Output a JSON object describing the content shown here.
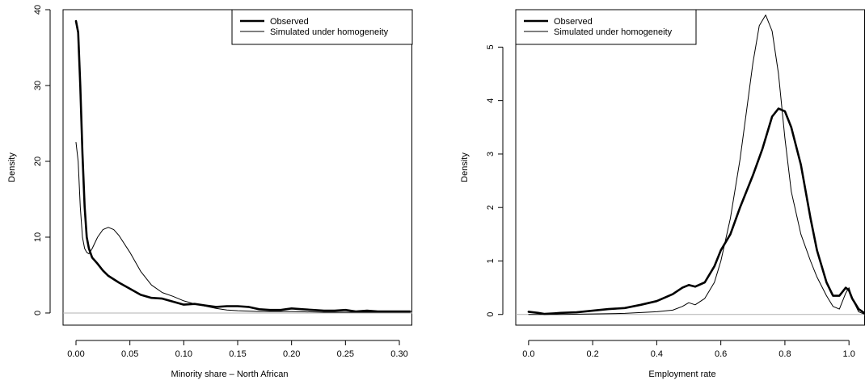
{
  "chart_data": [
    {
      "type": "line",
      "xlabel": "Minority share – North African",
      "ylabel": "Density",
      "xlim": [
        -0.012,
        0.312
      ],
      "ylim": [
        -1.6,
        40
      ],
      "xticks": [
        0.0,
        0.05,
        0.1,
        0.15,
        0.2,
        0.25,
        0.3
      ],
      "xtick_labels": [
        "0.00",
        "0.05",
        "0.10",
        "0.15",
        "0.20",
        "0.25",
        "0.30"
      ],
      "yticks": [
        0,
        10,
        20,
        30,
        40
      ],
      "ytick_labels": [
        "0",
        "10",
        "20",
        "30",
        "40"
      ],
      "legend_position": "top-right",
      "series": [
        {
          "name": "Observed",
          "style": "thick",
          "x": [
            0.0,
            0.002,
            0.004,
            0.006,
            0.008,
            0.01,
            0.012,
            0.015,
            0.02,
            0.025,
            0.03,
            0.04,
            0.05,
            0.06,
            0.07,
            0.08,
            0.09,
            0.1,
            0.11,
            0.12,
            0.13,
            0.14,
            0.15,
            0.16,
            0.17,
            0.18,
            0.19,
            0.2,
            0.21,
            0.22,
            0.23,
            0.24,
            0.25,
            0.26,
            0.27,
            0.28,
            0.29,
            0.3,
            0.31
          ],
          "y": [
            38.5,
            37.0,
            30.0,
            21.0,
            14.0,
            10.0,
            8.5,
            7.3,
            6.5,
            5.6,
            4.9,
            4.0,
            3.2,
            2.4,
            2.0,
            1.9,
            1.5,
            1.1,
            1.2,
            1.0,
            0.8,
            0.9,
            0.9,
            0.8,
            0.5,
            0.4,
            0.4,
            0.6,
            0.5,
            0.4,
            0.3,
            0.3,
            0.4,
            0.2,
            0.3,
            0.2,
            0.2,
            0.2,
            0.2
          ]
        },
        {
          "name": "Simulated under homogeneity",
          "style": "thin",
          "x": [
            0.0,
            0.002,
            0.004,
            0.006,
            0.008,
            0.01,
            0.012,
            0.015,
            0.02,
            0.025,
            0.03,
            0.035,
            0.04,
            0.05,
            0.06,
            0.07,
            0.08,
            0.09,
            0.1,
            0.11,
            0.12,
            0.13,
            0.14,
            0.15,
            0.17,
            0.2,
            0.23,
            0.26,
            0.29,
            0.31
          ],
          "y": [
            22.5,
            20.0,
            14.0,
            10.0,
            8.5,
            8.0,
            7.8,
            8.5,
            10.0,
            11.0,
            11.3,
            11.0,
            10.2,
            8.0,
            5.5,
            3.7,
            2.7,
            2.2,
            1.6,
            1.2,
            0.9,
            0.6,
            0.4,
            0.3,
            0.2,
            0.2,
            0.1,
            0.1,
            0.1,
            0.1
          ]
        }
      ]
    },
    {
      "type": "line",
      "xlabel": "Employment rate",
      "ylabel": "Density",
      "xlim": [
        -0.04,
        1.05
      ],
      "ylim": [
        -0.2,
        5.7
      ],
      "xticks": [
        0.0,
        0.2,
        0.4,
        0.6,
        0.8,
        1.0
      ],
      "xtick_labels": [
        "0.0",
        "0.2",
        "0.4",
        "0.6",
        "0.8",
        "1.0"
      ],
      "yticks": [
        0,
        1,
        2,
        3,
        4,
        5
      ],
      "ytick_labels": [
        "0",
        "1",
        "2",
        "3",
        "4",
        "5"
      ],
      "legend_position": "top-left",
      "series": [
        {
          "name": "Observed",
          "style": "thick",
          "x": [
            0.0,
            0.03,
            0.05,
            0.08,
            0.1,
            0.15,
            0.2,
            0.25,
            0.3,
            0.35,
            0.4,
            0.45,
            0.48,
            0.5,
            0.52,
            0.55,
            0.58,
            0.6,
            0.63,
            0.66,
            0.7,
            0.73,
            0.76,
            0.78,
            0.8,
            0.82,
            0.85,
            0.88,
            0.9,
            0.93,
            0.95,
            0.97,
            0.99,
            1.0,
            1.01,
            1.03,
            1.05
          ],
          "y": [
            0.05,
            0.03,
            0.01,
            0.02,
            0.03,
            0.04,
            0.07,
            0.1,
            0.12,
            0.18,
            0.25,
            0.38,
            0.5,
            0.55,
            0.52,
            0.6,
            0.9,
            1.2,
            1.5,
            2.0,
            2.6,
            3.1,
            3.7,
            3.85,
            3.8,
            3.5,
            2.8,
            1.8,
            1.2,
            0.6,
            0.35,
            0.35,
            0.5,
            0.45,
            0.3,
            0.1,
            0.02
          ]
        },
        {
          "name": "Simulated under homogeneity",
          "style": "thin",
          "x": [
            0.0,
            0.1,
            0.2,
            0.3,
            0.4,
            0.45,
            0.48,
            0.5,
            0.52,
            0.55,
            0.58,
            0.6,
            0.63,
            0.66,
            0.68,
            0.7,
            0.72,
            0.74,
            0.76,
            0.78,
            0.8,
            0.82,
            0.85,
            0.88,
            0.9,
            0.93,
            0.95,
            0.97,
            0.99,
            1.0,
            1.01,
            1.03,
            1.05
          ],
          "y": [
            0.0,
            0.0,
            0.01,
            0.02,
            0.05,
            0.08,
            0.15,
            0.22,
            0.18,
            0.3,
            0.6,
            1.0,
            1.8,
            2.9,
            3.8,
            4.7,
            5.4,
            5.6,
            5.3,
            4.5,
            3.3,
            2.3,
            1.5,
            1.0,
            0.7,
            0.35,
            0.15,
            0.1,
            0.4,
            0.5,
            0.3,
            0.05,
            0.0
          ]
        }
      ]
    }
  ]
}
